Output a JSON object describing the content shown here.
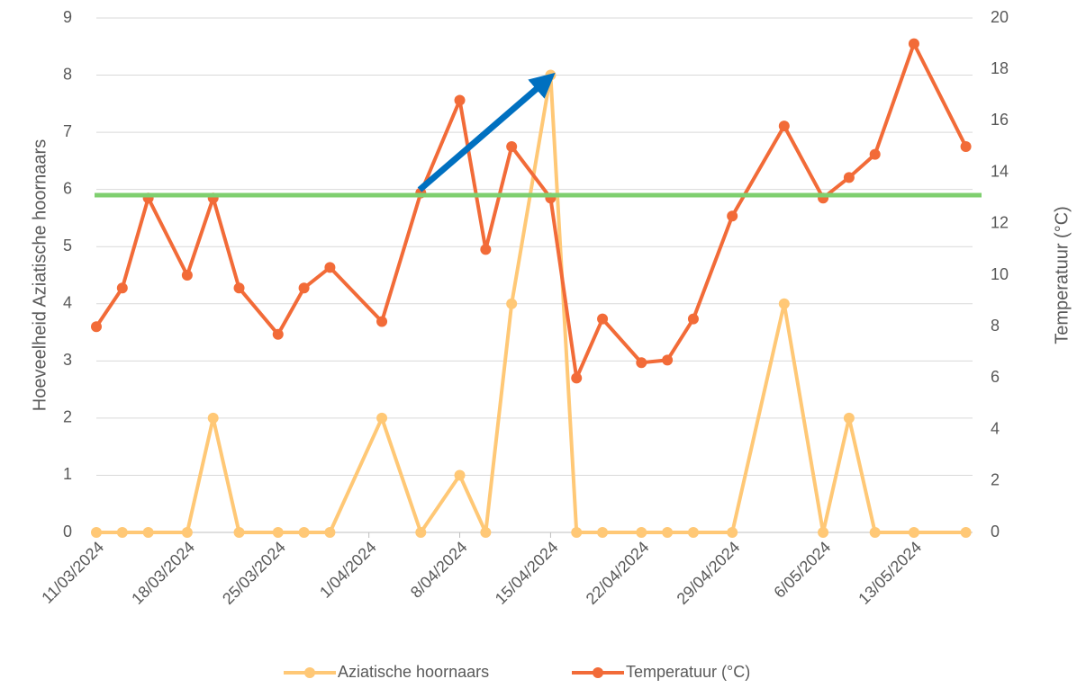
{
  "chart_data": {
    "type": "line",
    "y_label": "Hoeveelheid Aziatische hoornaars",
    "y2_label": "Temperatuur (°C)",
    "x": [
      "2024-03-11",
      "2024-03-13",
      "2024-03-15",
      "2024-03-18",
      "2024-03-20",
      "2024-03-22",
      "2024-03-25",
      "2024-03-27",
      "2024-03-29",
      "2024-04-02",
      "2024-04-05",
      "2024-04-08",
      "2024-04-10",
      "2024-04-12",
      "2024-04-15",
      "2024-04-17",
      "2024-04-19",
      "2024-04-22",
      "2024-04-24",
      "2024-04-26",
      "2024-04-29",
      "2024-05-03",
      "2024-05-06",
      "2024-05-08",
      "2024-05-10",
      "2024-05-13",
      "2024-05-17"
    ],
    "series": [
      {
        "name": "Aziatische hoornaars",
        "color": "#ffc876",
        "axis": "y",
        "values": [
          0,
          0,
          0,
          0,
          2,
          0,
          0,
          0,
          0,
          2,
          0,
          1,
          0,
          4,
          8,
          0,
          0,
          0,
          0,
          0,
          0,
          4,
          0,
          2,
          0,
          0,
          0
        ]
      },
      {
        "name": "Temperatuur (°C)",
        "color": "#f26b38",
        "axis": "y2",
        "values": [
          8,
          9.5,
          13,
          10,
          13,
          9.5,
          7.7,
          9.5,
          10.3,
          8.2,
          13.2,
          16.8,
          11,
          15,
          13,
          6,
          8.3,
          6.6,
          6.7,
          8.3,
          12.3,
          15.8,
          13,
          13.8,
          14.7,
          19,
          15
        ]
      }
    ],
    "xlim": [
      "2024-03-11",
      "2024-05-18"
    ],
    "xticks": [
      {
        "value": "2024-03-11",
        "label": "11/03/2024"
      },
      {
        "value": "2024-03-18",
        "label": "18/03/2024"
      },
      {
        "value": "2024-03-25",
        "label": "25/03/2024"
      },
      {
        "value": "2024-04-01",
        "label": "1/04/2024"
      },
      {
        "value": "2024-04-08",
        "label": "8/04/2024"
      },
      {
        "value": "2024-04-15",
        "label": "15/04/2024"
      },
      {
        "value": "2024-04-22",
        "label": "22/04/2024"
      },
      {
        "value": "2024-04-29",
        "label": "29/04/2024"
      },
      {
        "value": "2024-05-06",
        "label": "6/05/2024"
      },
      {
        "value": "2024-05-13",
        "label": "13/05/2024"
      }
    ],
    "ylim": [
      0,
      9
    ],
    "yticks": [
      0,
      1,
      2,
      3,
      4,
      5,
      6,
      7,
      8,
      9
    ],
    "y2lim": [
      0,
      20
    ],
    "y2ticks": [
      0,
      2,
      4,
      6,
      8,
      10,
      12,
      14,
      16,
      18,
      20
    ],
    "grid": true,
    "legend": "bottom"
  }
}
